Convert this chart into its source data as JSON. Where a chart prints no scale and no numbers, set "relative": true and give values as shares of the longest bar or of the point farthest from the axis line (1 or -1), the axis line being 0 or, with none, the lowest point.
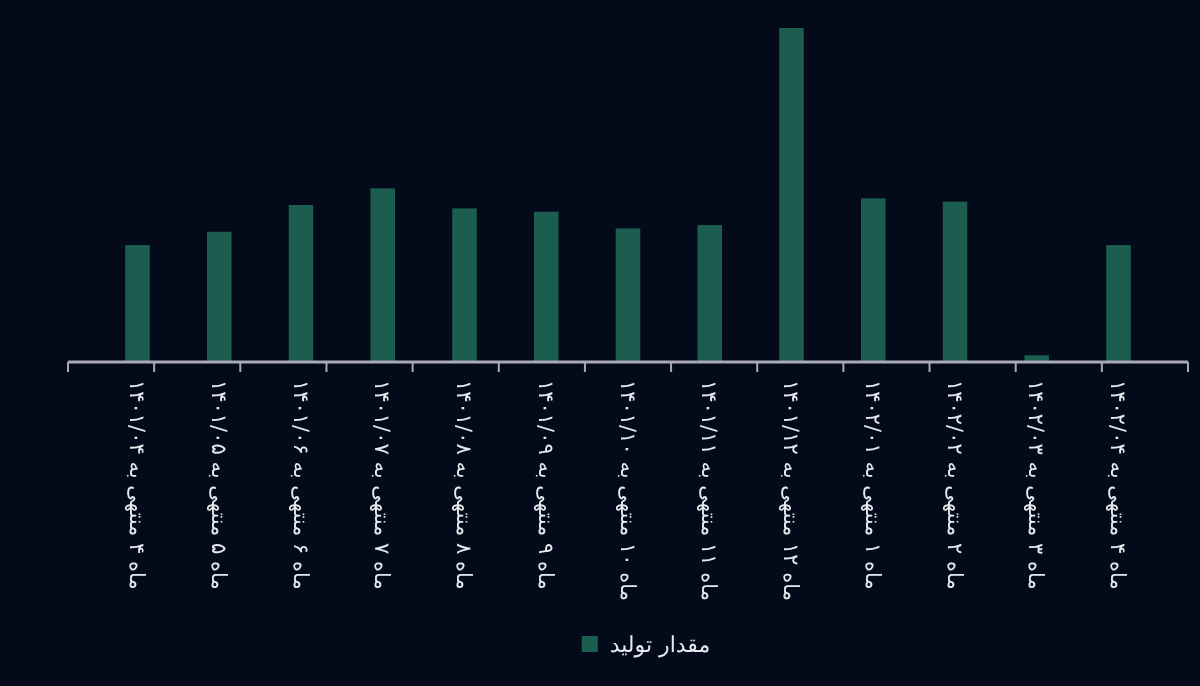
{
  "chart_data": {
    "type": "bar",
    "relative": true,
    "categories": [
      "ماه ۴ منتهی به ۱۴۰۱/۰۴",
      "ماه ۵ منتهی به ۱۴۰۱/۰۵",
      "ماه ۶ منتهی به ۱۴۰۱/۰۶",
      "ماه ۷ منتهی به ۱۴۰۱/۰۷",
      "ماه ۸ منتهی به ۱۴۰۱/۰۸",
      "ماه ۹ منتهی به ۱۴۰۱/۰۹",
      "ماه ۱۰ منتهی به ۱۴۰۱/۱۰",
      "ماه ۱۱ منتهی به ۱۴۰۱/۱۱",
      "ماه ۱۲ منتهی به ۱۴۰۱/۱۲",
      "ماه ۱ منتهی به ۱۴۰۲/۰۱",
      "ماه ۲ منتهی به ۱۴۰۲/۰۲",
      "ماه ۳ منتهی به ۱۴۰۲/۰۳",
      "ماه ۴ منتهی به ۱۴۰۲/۰۴"
    ],
    "series": [
      {
        "name": "مقدار تولید",
        "color": "#1b5e50",
        "values": [
          0.35,
          0.39,
          0.47,
          0.52,
          0.46,
          0.45,
          0.4,
          0.41,
          1,
          0.49,
          0.48,
          0.02,
          0.35
        ]
      }
    ],
    "legend": "bottom",
    "grid": false
  }
}
